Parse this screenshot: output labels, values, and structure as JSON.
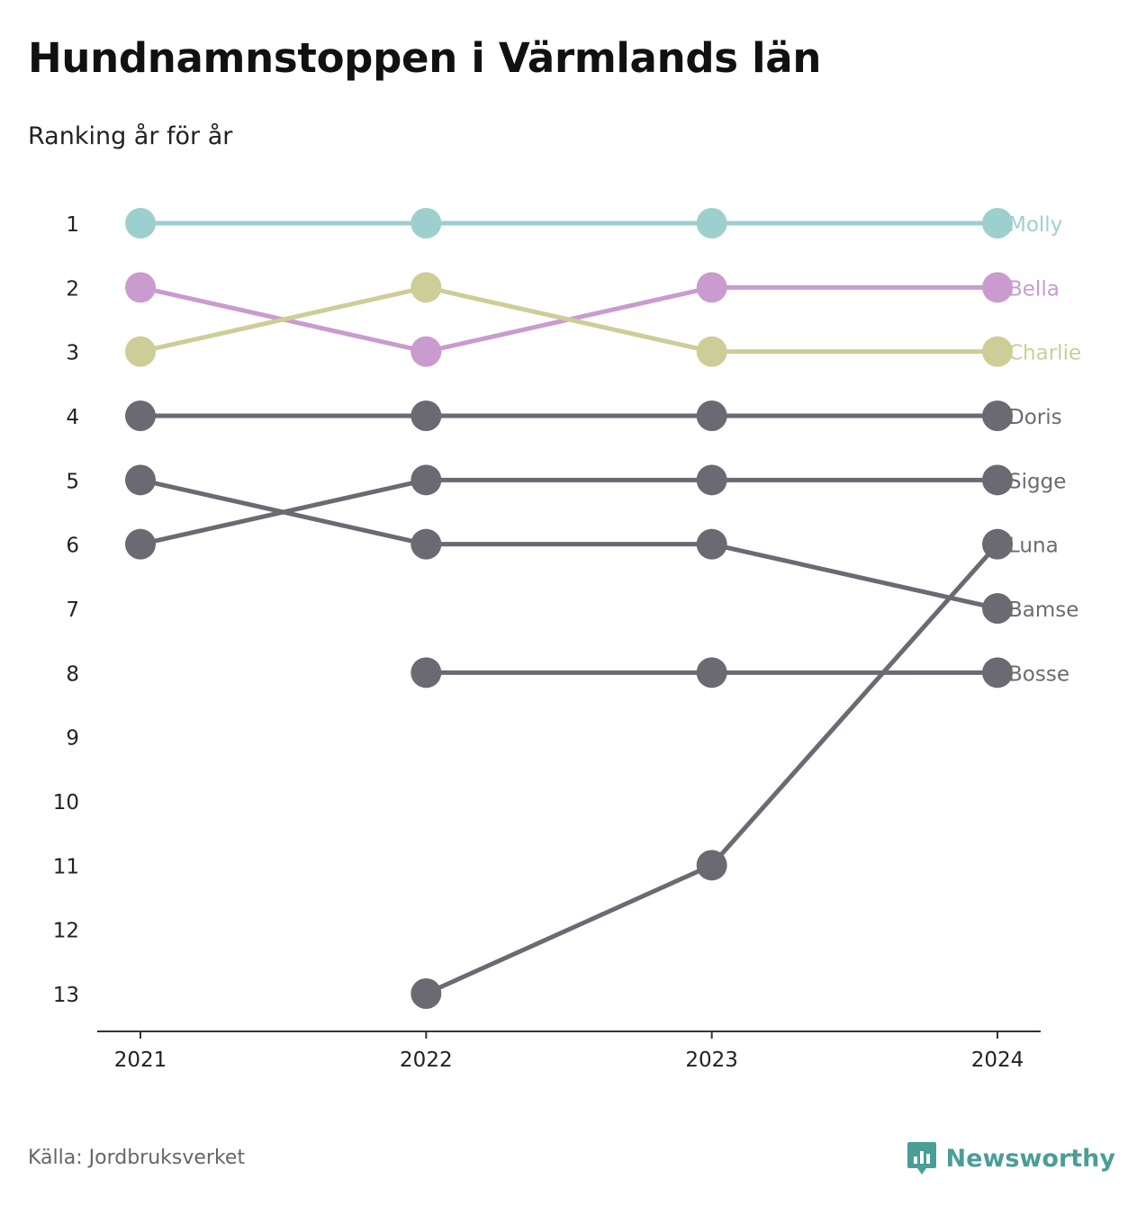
{
  "title": "Hundnamnstoppen i Värmlands län",
  "subtitle": "Ranking år för år",
  "source": "Källa: Jordbruksverket",
  "brand": {
    "name": "Newsworthy",
    "icon": "newsworthy-logo-icon",
    "color": "#4a9e96"
  },
  "chart_data": {
    "type": "line",
    "subtype": "bump",
    "x": [
      "2021",
      "2022",
      "2023",
      "2024"
    ],
    "y_ticks": [
      "1",
      "2",
      "3",
      "4",
      "5",
      "6",
      "7",
      "8",
      "9",
      "10",
      "11",
      "12",
      "13"
    ],
    "y_range": [
      1,
      13
    ],
    "y_inverted": true,
    "grid": false,
    "legend": "end-labels",
    "series": [
      {
        "name": "Molly",
        "color": "#9ecfcf",
        "values": [
          1,
          1,
          1,
          1
        ]
      },
      {
        "name": "Bella",
        "color": "#c99bce",
        "values": [
          2,
          3,
          2,
          2
        ]
      },
      {
        "name": "Charlie",
        "color": "#cdcd98",
        "values": [
          3,
          2,
          3,
          3
        ]
      },
      {
        "name": "Doris",
        "color": "#6b6a72",
        "values": [
          4,
          4,
          4,
          4
        ]
      },
      {
        "name": "Sigge",
        "color": "#6b6a72",
        "values": [
          6,
          5,
          5,
          5
        ]
      },
      {
        "name": "Luna",
        "color": "#6b6a72",
        "values": [
          null,
          13,
          11,
          6
        ]
      },
      {
        "name": "Bamse",
        "color": "#6b6a72",
        "values": [
          5,
          6,
          6,
          7
        ]
      },
      {
        "name": "Bosse",
        "color": "#6b6a72",
        "values": [
          null,
          8,
          8,
          8
        ]
      }
    ]
  }
}
